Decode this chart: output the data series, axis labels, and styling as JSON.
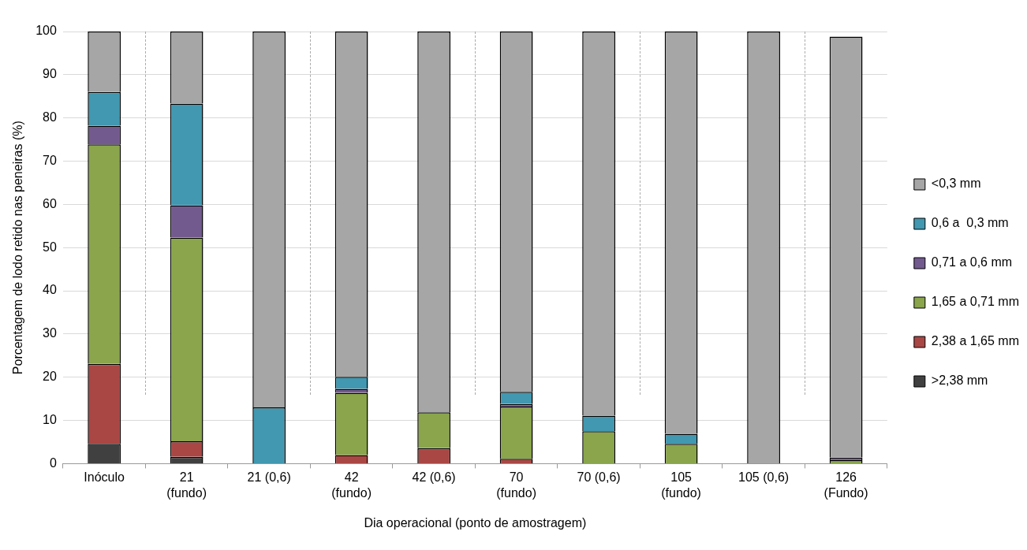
{
  "chart_data": {
    "type": "bar",
    "stacked": true,
    "xlabel": "Dia operacional (ponto de amostragem)",
    "ylabel": "Porcentagem de lodo retido nas peneiras (%)",
    "categories": [
      "Inóculo",
      "21\n(fundo)",
      "21 (0,6)",
      "42\n(fundo)",
      "42 (0,6)",
      "70\n(fundo)",
      "70 (0,6)",
      "105\n(fundo)",
      "105 (0,6)",
      "126\n(Fundo)"
    ],
    "ylim": [
      0,
      100
    ],
    "yticks": [
      0,
      10,
      20,
      30,
      40,
      50,
      60,
      70,
      80,
      90,
      100
    ],
    "grid": "y",
    "legend": "right",
    "series": [
      {
        "name": ">2,38 mm",
        "color": "#404040",
        "values": [
          4.6,
          1.6,
          0,
          0,
          0,
          0,
          0,
          0,
          0,
          0
        ]
      },
      {
        "name": "2,38 a 1,65 mm",
        "color": "#a94744",
        "values": [
          18.5,
          3.6,
          0,
          2.0,
          3.6,
          1.1,
          0,
          0,
          0,
          0
        ]
      },
      {
        "name": "1,65 a 0,71 mm",
        "color": "#8aa54c",
        "values": [
          50.8,
          47.1,
          0,
          14.4,
          8.3,
          12.1,
          7.5,
          4.6,
          0,
          0.8
        ]
      },
      {
        "name": "0,71 a 0,6 mm",
        "color": "#735a8e",
        "values": [
          4.3,
          7.5,
          0,
          0.9,
          0,
          0.6,
          0,
          0,
          0,
          0.6
        ]
      },
      {
        "name": "0,6 a  0,3 mm",
        "color": "#4198b0",
        "values": [
          7.8,
          23.5,
          13,
          2.8,
          0,
          2.8,
          3.6,
          2.3,
          0,
          0
        ]
      },
      {
        "name": "<0,3 mm",
        "color": "#a6a6a6",
        "values": [
          14,
          16.7,
          87,
          79.9,
          88.1,
          83.4,
          88.9,
          93.1,
          100,
          97.4
        ]
      }
    ]
  }
}
